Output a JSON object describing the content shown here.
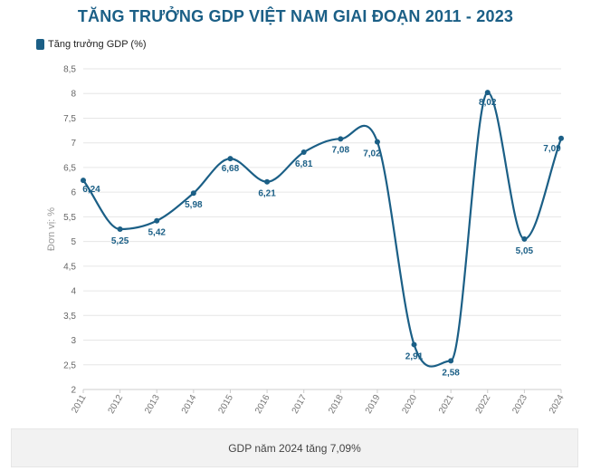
{
  "title": "TĂNG TRƯỞNG GDP VIỆT NAM GIAI ĐOẠN 2011 - 2023",
  "legend": {
    "label": "Tăng trưởng GDP (%)"
  },
  "footer": {
    "note": "GDP năm 2024 tăng 7,09%"
  },
  "colors": {
    "series": "#1b5f86",
    "title": "#1b5f86",
    "grid": "#e6e6e6"
  },
  "chart_data": {
    "type": "line",
    "title": "TĂNG TRƯỞNG GDP VIỆT NAM GIAI ĐOẠN 2011 - 2023",
    "xlabel": "",
    "ylabel": "Đơn vị: %",
    "ylim": [
      2,
      8.5
    ],
    "y_ticks": [
      "2",
      "2,5",
      "3",
      "3,5",
      "4",
      "4,5",
      "5",
      "5,5",
      "6",
      "6,5",
      "7",
      "7,5",
      "8",
      "8,5"
    ],
    "y_tick_values": [
      2,
      2.5,
      3,
      3.5,
      4,
      4.5,
      5,
      5.5,
      6,
      6.5,
      7,
      7.5,
      8,
      8.5
    ],
    "categories": [
      "2011",
      "2012",
      "2013",
      "2014",
      "2015",
      "2016",
      "2017",
      "2018",
      "2019",
      "2020",
      "2021",
      "2022",
      "2023",
      "2024"
    ],
    "series": [
      {
        "name": "Tăng trưởng GDP (%)",
        "values": [
          6.24,
          5.25,
          5.42,
          5.98,
          6.68,
          6.21,
          6.81,
          7.08,
          7.02,
          2.91,
          2.58,
          8.02,
          5.05,
          7.09
        ],
        "labels": [
          "6,24",
          "5,25",
          "5,42",
          "5,98",
          "6,68",
          "6,21",
          "6,81",
          "7,08",
          "7,02",
          "2,91",
          "2,58",
          "8,02",
          "5,05",
          "7,09"
        ]
      }
    ],
    "grid": true,
    "legend_position": "top-left"
  }
}
